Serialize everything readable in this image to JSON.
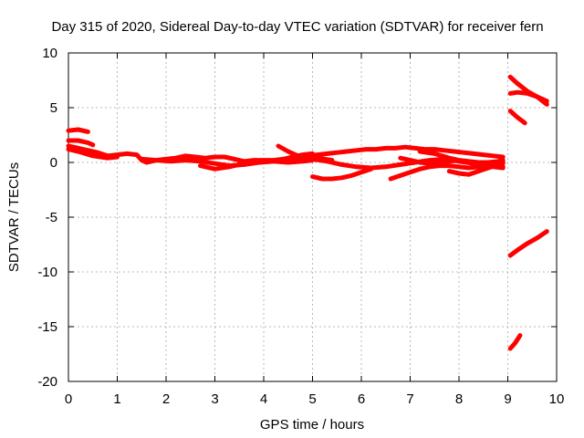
{
  "chart_data": {
    "type": "line",
    "title": "Day 315 of 2020, Sidereal Day-to-day VTEC variation (SDTVAR) for receiver fern",
    "xlabel": "GPS time / hours",
    "ylabel": "SDTVAR / TECUs",
    "xlim": [
      0,
      10
    ],
    "ylim": [
      -20,
      10
    ],
    "xticks": [
      0,
      1,
      2,
      3,
      4,
      5,
      6,
      7,
      8,
      9,
      10
    ],
    "yticks": [
      10,
      5,
      0,
      -5,
      -10,
      -15,
      -20
    ],
    "xtick_labels": [
      "0",
      "1",
      "2",
      "3",
      "4",
      "5",
      "6",
      "7",
      "8",
      "9",
      "10"
    ],
    "ytick_labels": [
      "10",
      "5",
      "0",
      "-5",
      "-10",
      "-15",
      "-20"
    ],
    "grid": true,
    "legend": "none",
    "color": "#ff0000",
    "series": [
      {
        "x": [
          0.0,
          0.2,
          0.4
        ],
        "y": [
          2.9,
          3.0,
          2.8
        ]
      },
      {
        "x": [
          0.0,
          0.2,
          0.4,
          0.5
        ],
        "y": [
          2.0,
          2.0,
          1.8,
          1.6
        ]
      },
      {
        "x": [
          0.0,
          0.3,
          0.6,
          0.8,
          1.0,
          1.2,
          1.4,
          1.5,
          1.6,
          1.8,
          2.0,
          2.2,
          2.4,
          2.6,
          2.8,
          3.0,
          3.2,
          3.4,
          3.6,
          3.8,
          4.0,
          4.2,
          4.4,
          4.6,
          4.8,
          5.0
        ],
        "y": [
          1.5,
          1.2,
          0.9,
          0.6,
          0.7,
          0.8,
          0.7,
          0.2,
          0.0,
          0.2,
          0.3,
          0.4,
          0.6,
          0.5,
          0.4,
          0.5,
          0.5,
          0.3,
          0.1,
          0.2,
          0.2,
          0.2,
          0.3,
          0.5,
          0.7,
          0.8
        ]
      },
      {
        "x": [
          0.0,
          0.2,
          0.5,
          0.8,
          1.0
        ],
        "y": [
          1.2,
          1.0,
          0.6,
          0.4,
          0.5
        ]
      },
      {
        "x": [
          1.5,
          1.8,
          2.1,
          2.4,
          2.7,
          3.0,
          3.3,
          3.6,
          3.9,
          4.2,
          4.5,
          4.8,
          5.0
        ],
        "y": [
          0.3,
          0.2,
          0.1,
          0.2,
          0.1,
          -0.1,
          -0.3,
          -0.2,
          0.0,
          0.1,
          0.0,
          0.1,
          0.2
        ]
      },
      {
        "x": [
          2.7,
          3.0,
          3.3,
          3.6,
          3.9,
          4.2,
          4.5,
          4.8,
          5.1,
          5.4
        ],
        "y": [
          -0.3,
          -0.6,
          -0.4,
          -0.1,
          0.0,
          0.1,
          0.3,
          0.5,
          0.4,
          0.2
        ]
      },
      {
        "x": [
          4.3,
          4.5,
          4.7,
          4.9,
          5.1,
          5.3,
          5.5,
          5.7,
          5.9,
          6.1,
          6.3,
          6.5,
          6.7,
          6.9,
          7.1,
          7.3,
          7.5,
          7.7,
          7.9,
          8.1,
          8.3,
          8.5,
          8.7,
          8.9
        ],
        "y": [
          1.5,
          1.0,
          0.6,
          0.6,
          0.7,
          0.8,
          0.9,
          1.0,
          1.1,
          1.2,
          1.2,
          1.3,
          1.3,
          1.4,
          1.3,
          1.2,
          1.2,
          1.1,
          1.0,
          0.9,
          0.8,
          0.7,
          0.6,
          0.5
        ]
      },
      {
        "x": [
          5.0,
          5.3,
          5.6,
          5.9,
          6.2,
          6.5,
          6.8,
          7.1,
          7.4,
          7.7,
          8.0,
          8.3,
          8.6,
          8.9
        ],
        "y": [
          0.3,
          0.1,
          -0.2,
          -0.4,
          -0.5,
          -0.4,
          -0.2,
          0.0,
          0.2,
          0.3,
          0.1,
          -0.1,
          -0.3,
          -0.4
        ]
      },
      {
        "x": [
          5.0,
          5.2,
          5.4,
          5.6,
          5.8,
          6.0,
          6.2
        ],
        "y": [
          -1.3,
          -1.5,
          -1.5,
          -1.4,
          -1.2,
          -0.9,
          -0.6
        ]
      },
      {
        "x": [
          6.6,
          6.8,
          7.0,
          7.2,
          7.4,
          7.6,
          7.8,
          8.0,
          8.2,
          8.4,
          8.6,
          8.8,
          8.9
        ],
        "y": [
          -1.5,
          -1.2,
          -0.9,
          -0.6,
          -0.4,
          -0.3,
          -0.3,
          -0.4,
          -0.5,
          -0.4,
          -0.3,
          -0.2,
          -0.1
        ]
      },
      {
        "x": [
          6.8,
          7.0,
          7.2,
          7.4,
          7.6,
          7.8,
          8.0,
          8.2,
          8.4,
          8.6,
          8.8,
          8.9
        ],
        "y": [
          0.4,
          0.2,
          0.0,
          -0.1,
          0.0,
          0.1,
          0.2,
          0.1,
          0.0,
          0.0,
          0.1,
          0.2
        ]
      },
      {
        "x": [
          7.2,
          7.5,
          7.8,
          8.1,
          8.4,
          8.7,
          8.9
        ],
        "y": [
          1.0,
          0.8,
          0.4,
          0.1,
          -0.2,
          -0.4,
          -0.5
        ]
      },
      {
        "x": [
          7.8,
          8.0,
          8.2,
          8.4,
          8.6,
          8.8,
          8.9
        ],
        "y": [
          -0.8,
          -1.0,
          -1.1,
          -0.8,
          -0.5,
          -0.2,
          0.0
        ]
      },
      {
        "x": [
          9.05,
          9.2,
          9.4,
          9.6,
          9.8
        ],
        "y": [
          7.8,
          7.2,
          6.5,
          6.0,
          5.3
        ]
      },
      {
        "x": [
          9.05,
          9.2,
          9.4,
          9.6,
          9.8
        ],
        "y": [
          6.3,
          6.4,
          6.3,
          6.0,
          5.6
        ]
      },
      {
        "x": [
          9.05,
          9.2,
          9.35
        ],
        "y": [
          4.7,
          4.1,
          3.6
        ]
      },
      {
        "x": [
          9.05,
          9.2,
          9.4,
          9.6,
          9.8
        ],
        "y": [
          -8.5,
          -8.0,
          -7.4,
          -6.9,
          -6.3
        ]
      },
      {
        "x": [
          9.05,
          9.15,
          9.25
        ],
        "y": [
          -17.0,
          -16.5,
          -15.8
        ]
      }
    ]
  }
}
